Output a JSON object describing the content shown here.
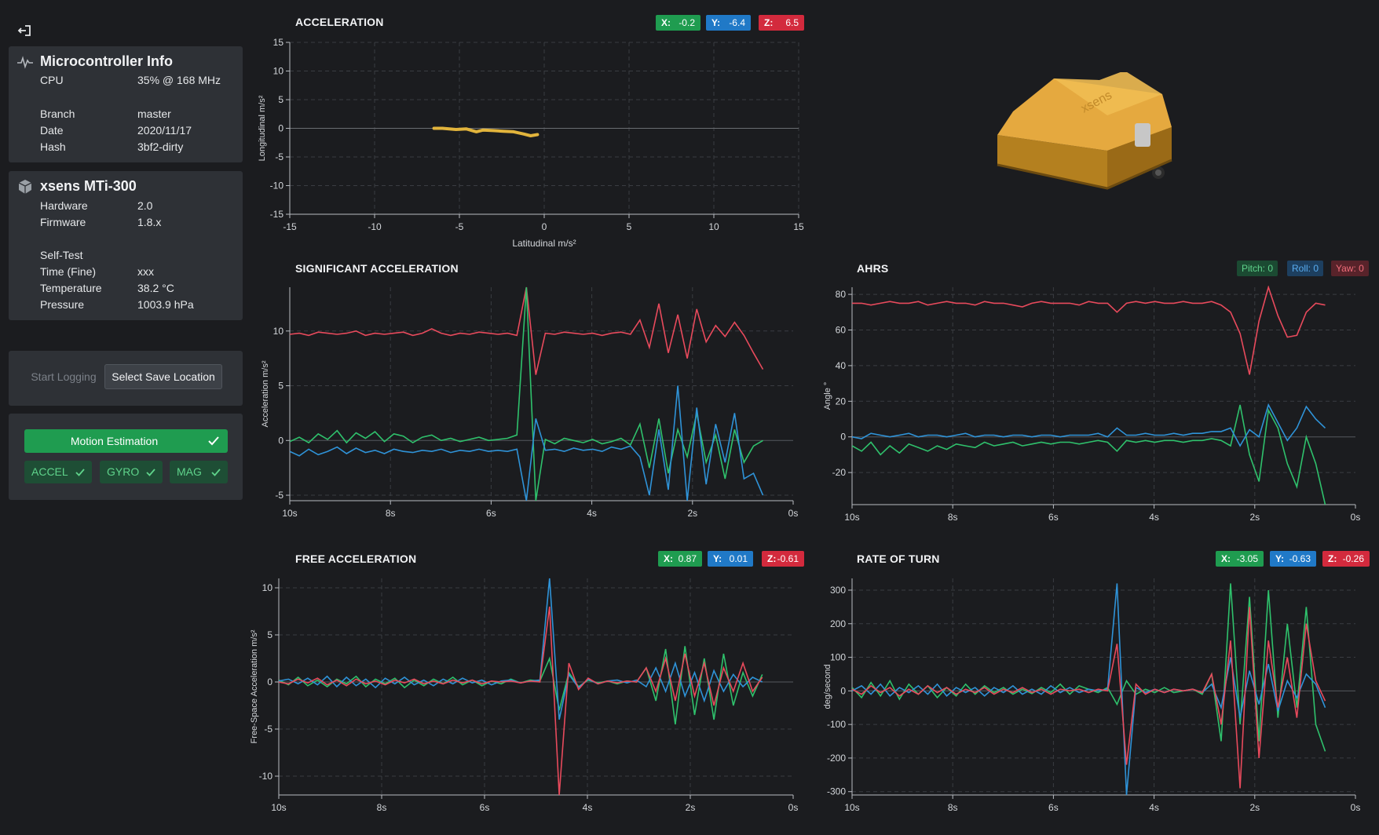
{
  "sidebar": {
    "micro": {
      "title": "Microcontroller Info",
      "icon": "activity-icon",
      "rows": [
        {
          "k": "CPU",
          "v": "35% @ 168 MHz"
        },
        {
          "k": "Branch",
          "v": "master"
        },
        {
          "k": "Date",
          "v": "2020/11/17"
        },
        {
          "k": "Hash",
          "v": "3bf2-dirty"
        }
      ]
    },
    "sensor": {
      "title": "xsens MTi-300",
      "icon": "cube-icon",
      "rows": [
        {
          "k": "Hardware",
          "v": "2.0"
        },
        {
          "k": "Firmware",
          "v": "1.8.x"
        },
        {
          "k": "Self-Test",
          "v": ""
        },
        {
          "k": "Time (Fine)",
          "v": "xxx"
        },
        {
          "k": "Temperature",
          "v": "38.2 °C"
        },
        {
          "k": "Pressure",
          "v": "1003.9 hPa"
        }
      ]
    },
    "logging": {
      "start": "Start Logging",
      "select": "Select Save Location"
    },
    "motion": {
      "label": "Motion Estimation",
      "accel": "ACCEL",
      "gyro": "GYRO",
      "mag": "MAG"
    }
  },
  "colors": {
    "green": "#2fc16c",
    "blue": "#2f93d8",
    "red": "#e84a5c"
  },
  "acceleration": {
    "title": "ACCELERATION",
    "badges": [
      {
        "k": "X:",
        "v": "-0.2"
      },
      {
        "k": "Y:",
        "v": "-6.4"
      },
      {
        "k": "Z:",
        "v": "6.5"
      }
    ],
    "chart_data": {
      "type": "scatter",
      "xlabel": "Latitudinal m/s²",
      "ylabel": "Longitudinal m/s²",
      "xlim": [
        -15,
        15
      ],
      "ylim": [
        -15,
        15
      ],
      "xticks": [
        "-15",
        "-10",
        "-5",
        "0",
        "5",
        "10",
        "15"
      ],
      "yticks": [
        "15",
        "10",
        "5",
        "0",
        "-5",
        "-10",
        "-15"
      ],
      "trace": [
        [
          -6.5,
          0.0
        ],
        [
          -6.0,
          0.0
        ],
        [
          -5.2,
          -0.2
        ],
        [
          -4.6,
          -0.1
        ],
        [
          -4.0,
          -0.6
        ],
        [
          -3.6,
          -0.3
        ],
        [
          -3.0,
          -0.4
        ],
        [
          -2.4,
          -0.5
        ],
        [
          -1.8,
          -0.6
        ],
        [
          -1.2,
          -1.0
        ],
        [
          -0.8,
          -1.3
        ],
        [
          -0.4,
          -1.1
        ]
      ]
    }
  },
  "significant": {
    "title": "SIGNIFICANT ACCELERATION",
    "chart_data": {
      "type": "line",
      "ylabel": "Acceleration m/s²",
      "xlim": [
        10,
        0
      ],
      "ylim": [
        -5.5,
        14
      ],
      "xticks": [
        "10s",
        "8s",
        "6s",
        "4s",
        "2s",
        "0s"
      ],
      "yticks": [
        "10",
        "5",
        "0",
        "-5"
      ],
      "series": [
        {
          "color": "red",
          "values": [
            9.7,
            9.8,
            9.6,
            9.9,
            9.8,
            9.7,
            9.8,
            10.0,
            9.6,
            9.8,
            9.7,
            9.8,
            9.9,
            9.6,
            9.8,
            10.2,
            9.8,
            9.6,
            9.8,
            9.7,
            9.9,
            9.8,
            9.7,
            9.8,
            9.6,
            14.0,
            6.0,
            9.8,
            9.7,
            9.9,
            9.8,
            9.7,
            9.8,
            9.6,
            9.8,
            9.9,
            9.7,
            11.0,
            8.5,
            12.5,
            8.0,
            11.5,
            7.5,
            12.0,
            9.0,
            10.5,
            9.5,
            10.8,
            9.6,
            8.0,
            6.5
          ]
        },
        {
          "color": "green",
          "values": [
            -0.1,
            0.3,
            -0.2,
            0.6,
            0.1,
            0.9,
            -0.2,
            0.7,
            0.2,
            0.8,
            -0.1,
            0.6,
            0.4,
            -0.2,
            0.3,
            0.5,
            0.0,
            0.2,
            -0.1,
            0.1,
            0.3,
            0.0,
            0.1,
            0.2,
            0.5,
            14.0,
            -5.5,
            0.1,
            -0.3,
            0.2,
            0.0,
            -0.2,
            0.1,
            -0.3,
            -0.1,
            0.2,
            -0.4,
            1.5,
            -2.5,
            2.0,
            -3.0,
            1.0,
            -1.5,
            2.5,
            -2.0,
            0.5,
            -3.5,
            1.0,
            -2.0,
            -0.5,
            0.0
          ]
        },
        {
          "color": "blue",
          "values": [
            -1.0,
            -1.4,
            -0.8,
            -1.3,
            -1.0,
            -0.6,
            -1.2,
            -0.7,
            -1.1,
            -0.9,
            -1.2,
            -0.8,
            -1.0,
            -1.1,
            -0.9,
            -1.0,
            -0.8,
            -1.1,
            -0.9,
            -1.0,
            -0.8,
            -1.0,
            -0.9,
            -1.0,
            -0.8,
            -5.5,
            2.0,
            -0.9,
            -0.8,
            -1.0,
            -0.7,
            -0.9,
            -0.8,
            -1.0,
            -0.6,
            -0.8,
            -0.5,
            -1.5,
            -5.0,
            1.0,
            -4.5,
            5.0,
            -5.5,
            3.0,
            -4.0,
            1.5,
            -2.0,
            2.5,
            -3.5,
            -3.0,
            -5.0
          ]
        }
      ]
    }
  },
  "ahrs": {
    "title": "AHRS",
    "badges": [
      {
        "k": "Pitch:",
        "v": "0"
      },
      {
        "k": "Roll:",
        "v": "0"
      },
      {
        "k": "Yaw:",
        "v": "0"
      }
    ],
    "chart_data": {
      "type": "line",
      "ylabel": "Angle °",
      "xlim": [
        10,
        0
      ],
      "ylim": [
        -38,
        84
      ],
      "xticks": [
        "10s",
        "8s",
        "6s",
        "4s",
        "2s",
        "0s"
      ],
      "yticks": [
        "80",
        "60",
        "40",
        "20",
        "0",
        "-20"
      ],
      "series": [
        {
          "color": "red",
          "values": [
            75,
            75,
            74,
            75,
            76,
            75,
            75,
            76,
            74,
            75,
            76,
            75,
            75,
            74,
            76,
            75,
            75,
            74,
            73,
            75,
            76,
            75,
            75,
            75,
            74,
            76,
            75,
            75,
            70,
            75,
            76,
            75,
            76,
            75,
            75,
            76,
            75,
            75,
            76,
            74,
            70,
            58,
            35,
            65,
            84,
            68,
            56,
            57,
            70,
            75,
            74
          ]
        },
        {
          "color": "green",
          "values": [
            -5,
            -8,
            -3,
            -10,
            -5,
            -9,
            -4,
            -6,
            -8,
            -5,
            -7,
            -4,
            -5,
            -6,
            -3,
            -5,
            -4,
            -3,
            -5,
            -4,
            -3,
            -4,
            -3,
            -3,
            -4,
            -3,
            -2,
            -3,
            -8,
            -2,
            -3,
            -2,
            -3,
            -2,
            -2,
            -3,
            -2,
            -2,
            -1,
            -2,
            -5,
            18,
            -10,
            -25,
            15,
            5,
            -15,
            -28,
            0,
            -15,
            -38
          ]
        },
        {
          "color": "blue",
          "values": [
            0,
            -1,
            2,
            1,
            0,
            1,
            2,
            0,
            1,
            1,
            0,
            1,
            2,
            0,
            1,
            1,
            0,
            1,
            1,
            0,
            1,
            1,
            0,
            1,
            1,
            1,
            2,
            0,
            5,
            1,
            1,
            2,
            1,
            1,
            2,
            1,
            2,
            2,
            3,
            3,
            5,
            -5,
            4,
            0,
            18,
            8,
            -2,
            5,
            17,
            10,
            5
          ]
        }
      ]
    }
  },
  "free": {
    "title": "FREE ACCELERATION",
    "badges": [
      {
        "k": "X:",
        "v": "0.87"
      },
      {
        "k": "Y:",
        "v": "0.01"
      },
      {
        "k": "Z:",
        "v": "-0.61"
      }
    ],
    "chart_data": {
      "type": "line",
      "ylabel": "Free-Space Acceleration m/s²",
      "xlim": [
        10,
        0
      ],
      "ylim": [
        -12,
        11
      ],
      "xticks": [
        "10s",
        "8s",
        "6s",
        "4s",
        "2s",
        "0s"
      ],
      "yticks": [
        "10",
        "5",
        "0",
        "-5",
        "-10"
      ],
      "series": [
        {
          "color": "green",
          "values": [
            0.2,
            -0.3,
            0.5,
            -0.4,
            0.2,
            -0.5,
            0.3,
            -0.2,
            0.6,
            -0.5,
            0.3,
            -0.2,
            0.4,
            -0.6,
            0.2,
            -0.4,
            0.3,
            -0.2,
            0.5,
            -0.3,
            0.2,
            -0.4,
            0.1,
            -0.2,
            0.3,
            -0.1,
            0.2,
            0.1,
            2.5,
            -3.0,
            1.0,
            -0.5,
            0.2,
            -0.1,
            0.1,
            -0.2,
            0.1,
            0.0,
            1.5,
            -2.0,
            3.5,
            -4.5,
            3.8,
            -3.5,
            2.5,
            -4.0,
            3.0,
            -2.5,
            1.0,
            -1.5,
            0.8
          ]
        },
        {
          "color": "blue",
          "values": [
            0.1,
            0.3,
            -0.2,
            0.4,
            -0.3,
            0.6,
            -0.5,
            0.5,
            -0.4,
            0.3,
            -0.6,
            0.4,
            -0.2,
            0.5,
            -0.3,
            0.2,
            -0.4,
            0.3,
            -0.2,
            0.4,
            -0.1,
            0.2,
            -0.3,
            0.1,
            0.2,
            -0.1,
            0.1,
            0.2,
            11.0,
            -4.0,
            0.8,
            -0.6,
            0.3,
            -0.2,
            0.1,
            0.2,
            -0.1,
            0.2,
            -0.5,
            1.5,
            -1.0,
            2.0,
            -1.5,
            1.0,
            -2.0,
            1.2,
            -1.0,
            0.8,
            -0.5,
            0.5,
            0.0
          ]
        },
        {
          "color": "red",
          "values": [
            0.0,
            -0.2,
            0.3,
            -0.1,
            0.4,
            -0.3,
            0.2,
            -0.4,
            0.3,
            -0.2,
            0.1,
            -0.3,
            0.2,
            -0.1,
            0.3,
            -0.2,
            0.1,
            -0.2,
            0.2,
            -0.1,
            0.2,
            -0.2,
            0.1,
            0.0,
            0.1,
            -0.1,
            0.1,
            0.0,
            8.0,
            -12.0,
            2.0,
            -0.8,
            0.4,
            -0.2,
            0.1,
            -0.1,
            0.1,
            0.0,
            1.5,
            -1.0,
            2.5,
            -2.0,
            3.0,
            -1.5,
            2.0,
            -2.5,
            1.5,
            -1.0,
            2.0,
            -1.0,
            0.5
          ]
        }
      ]
    }
  },
  "rot": {
    "title": "RATE OF TURN",
    "badges": [
      {
        "k": "X:",
        "v": "-3.05"
      },
      {
        "k": "Y:",
        "v": "-0.63"
      },
      {
        "k": "Z:",
        "v": "-0.26"
      }
    ],
    "chart_data": {
      "type": "line",
      "ylabel": "deg/second",
      "xlim": [
        10,
        0
      ],
      "ylim": [
        -310,
        335
      ],
      "xticks": [
        "10s",
        "8s",
        "6s",
        "4s",
        "2s",
        "0s"
      ],
      "yticks": [
        "300",
        "200",
        "100",
        "0",
        "-100",
        "-200",
        "-300"
      ],
      "series": [
        {
          "color": "green",
          "values": [
            10,
            -20,
            25,
            -15,
            30,
            -25,
            20,
            -10,
            15,
            -20,
            10,
            -15,
            20,
            -10,
            15,
            -5,
            10,
            -10,
            5,
            -8,
            10,
            -5,
            20,
            -10,
            15,
            5,
            -5,
            10,
            -40,
            30,
            -10,
            5,
            -5,
            10,
            -5,
            0,
            5,
            -10,
            50,
            -150,
            320,
            -100,
            280,
            -150,
            300,
            -80,
            200,
            -50,
            250,
            -100,
            -180
          ]
        },
        {
          "color": "blue",
          "values": [
            0,
            15,
            -10,
            20,
            -15,
            10,
            -5,
            15,
            -10,
            20,
            -15,
            10,
            -5,
            10,
            -15,
            10,
            -5,
            15,
            -10,
            5,
            -10,
            15,
            -5,
            10,
            -5,
            5,
            0,
            5,
            320,
            -310,
            10,
            -5,
            5,
            -5,
            5,
            0,
            5,
            -5,
            20,
            -50,
            100,
            -80,
            60,
            -40,
            80,
            -60,
            30,
            -20,
            50,
            20,
            -50
          ]
        },
        {
          "color": "red",
          "values": [
            5,
            -10,
            15,
            -5,
            10,
            -15,
            5,
            -10,
            15,
            -5,
            10,
            -10,
            5,
            -5,
            10,
            -10,
            5,
            -5,
            10,
            -5,
            5,
            -10,
            5,
            0,
            5,
            -5,
            5,
            0,
            140,
            -220,
            20,
            -10,
            5,
            -5,
            5,
            0,
            5,
            -5,
            50,
            -100,
            150,
            -290,
            250,
            -200,
            150,
            -50,
            100,
            -80,
            200,
            30,
            -30
          ]
        }
      ]
    }
  }
}
